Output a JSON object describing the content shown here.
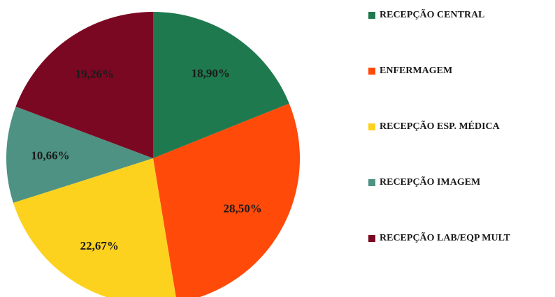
{
  "chart_data": {
    "type": "pie",
    "categories": [
      "RECEPÇÃO CENTRAL",
      "ENFERMAGEM",
      "RECEPÇÃO  ESP. MÉDICA",
      "RECEPÇÃO IMAGEM",
      "RECEPÇÃO LAB/EQP MULT"
    ],
    "values": [
      18.9,
      28.5,
      22.67,
      10.66,
      19.26
    ],
    "value_labels": [
      "18,90%",
      "28,50%",
      "22,67%",
      "10,66%",
      "19,26%"
    ],
    "colors": [
      "#1e7a4e",
      "#ff4a0a",
      "#fdd21f",
      "#4e9283",
      "#7b0823"
    ],
    "start_angle_deg": 0,
    "direction": "clockwise",
    "legend_position": "right",
    "title": ""
  }
}
